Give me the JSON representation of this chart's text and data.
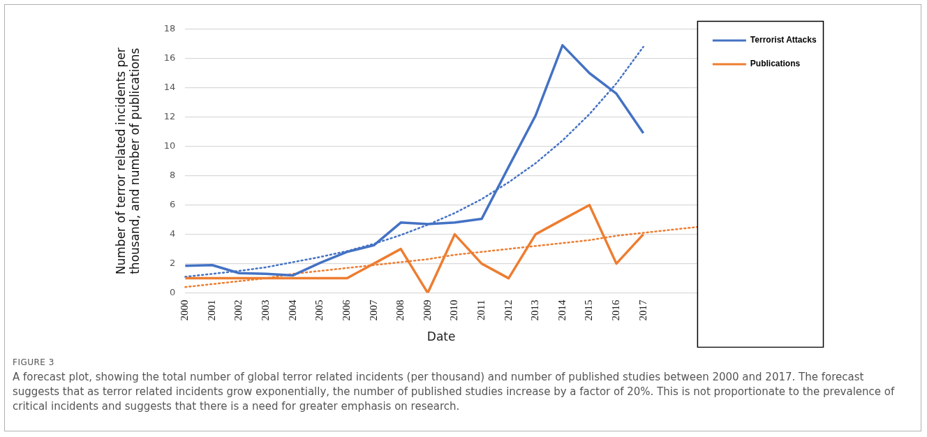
{
  "chart_data": {
    "type": "line",
    "xlabel": "Date",
    "ylabel": "Number of terror related incidents per thousand, and number of publications",
    "categories": [
      "2000",
      "2001",
      "2002",
      "2003",
      "2004",
      "2005",
      "2006",
      "2007",
      "2008",
      "2009",
      "2010",
      "2011",
      "2012",
      "2013",
      "2014",
      "2015",
      "2016",
      "2017",
      null,
      null
    ],
    "series": [
      {
        "name": "Terrorist Attacks",
        "color": "#4472c4",
        "values": [
          1.85,
          1.9,
          1.35,
          1.3,
          1.2,
          2.05,
          2.8,
          3.25,
          4.8,
          4.7,
          4.8,
          5.05,
          8.6,
          12.1,
          16.9,
          15.0,
          13.6,
          10.9,
          null,
          null
        ]
      },
      {
        "name": "Publications",
        "color": "#ed7d31",
        "values": [
          1,
          1,
          1,
          1,
          1,
          1,
          1,
          2,
          3,
          0,
          4,
          2,
          1,
          4,
          5,
          6,
          2,
          4,
          null,
          null
        ]
      },
      {
        "color": "#4472c4",
        "line_style": "dotted",
        "values": [
          1.1,
          1.3,
          1.5,
          1.75,
          2.1,
          2.45,
          2.85,
          3.35,
          3.95,
          4.65,
          5.45,
          6.4,
          7.55,
          8.85,
          10.4,
          12.2,
          14.3,
          16.8,
          null,
          null
        ]
      },
      {
        "color": "#ed7d31",
        "line_style": "dotted",
        "values": [
          0.4,
          0.6,
          0.8,
          1.0,
          1.3,
          1.5,
          1.7,
          1.9,
          2.1,
          2.3,
          2.6,
          2.8,
          3.0,
          3.2,
          3.4,
          3.6,
          3.9,
          4.1,
          4.3,
          4.5
        ]
      }
    ],
    "ylim": [
      0,
      18
    ],
    "yticks": [
      0,
      2,
      4,
      6,
      8,
      10,
      12,
      14,
      16,
      18
    ],
    "grid": "y",
    "legend": "top right",
    "marker": "none",
    "line_style": "solid",
    "annotations": [
      "FIGURE 3",
      "A forecast plot, showing the total number of global terror related incidents (per thousand) and number of published studies between 2000 and 2017. The forecast suggests that as terror related incidents grow exponentially, the number of published studies increase by a factor of 20%. This is not proportionate to the prevalence of critical incidents and suggests that there is a need for greater emphasis on research."
    ]
  }
}
